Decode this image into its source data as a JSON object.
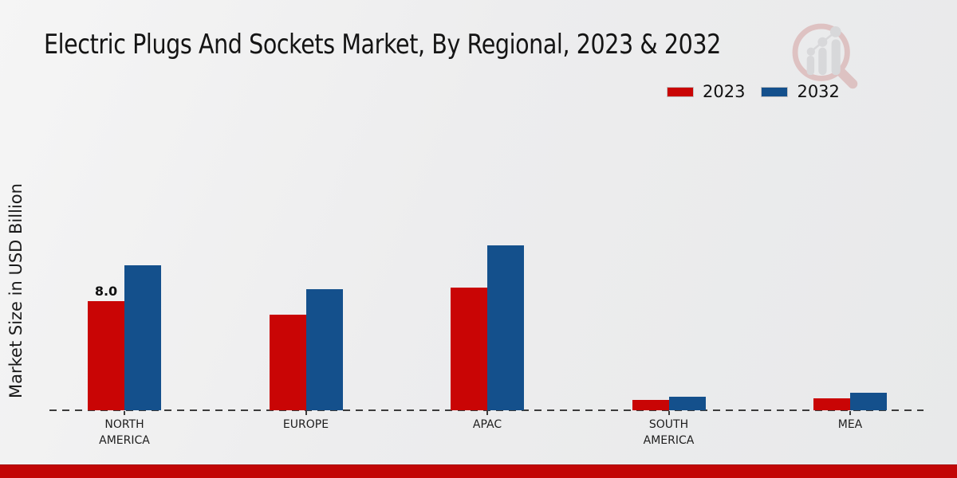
{
  "title": "Electric Plugs And Sockets Market, By Regional, 2023 & 2032",
  "y_axis_label": "Market Size in USD Billion",
  "legend": {
    "items": [
      {
        "label": "2023",
        "color": "#c90505"
      },
      {
        "label": "2032",
        "color": "#14508c"
      }
    ]
  },
  "colors": {
    "series_2023": "#c90505",
    "series_2032": "#14508c",
    "footer_bar": "#c20606",
    "baseline": "#3c3c3c"
  },
  "icons": {
    "watermark": "magnifier-bar-chart-logo-icon"
  },
  "chart_data": {
    "type": "bar",
    "title": "Electric Plugs And Sockets Market, By Regional, 2023 & 2032",
    "xlabel": "",
    "ylabel": "Market Size in USD Billion",
    "categories": [
      "NORTH AMERICA",
      "EUROPE",
      "APAC",
      "SOUTH AMERICA",
      "MEA"
    ],
    "series": [
      {
        "name": "2023",
        "color": "#c90505",
        "values": [
          8.0,
          7.0,
          9.0,
          0.75,
          0.85
        ]
      },
      {
        "name": "2032",
        "color": "#14508c",
        "values": [
          10.6,
          8.9,
          12.1,
          1.0,
          1.3
        ]
      }
    ],
    "annotations": [
      {
        "series": "2023",
        "category": "NORTH AMERICA",
        "text": "8.0"
      }
    ],
    "ylim": [
      0,
      13
    ],
    "grid": false,
    "y_tick_labels": false,
    "baseline_style": "dashed",
    "legend_position": "top-right"
  }
}
